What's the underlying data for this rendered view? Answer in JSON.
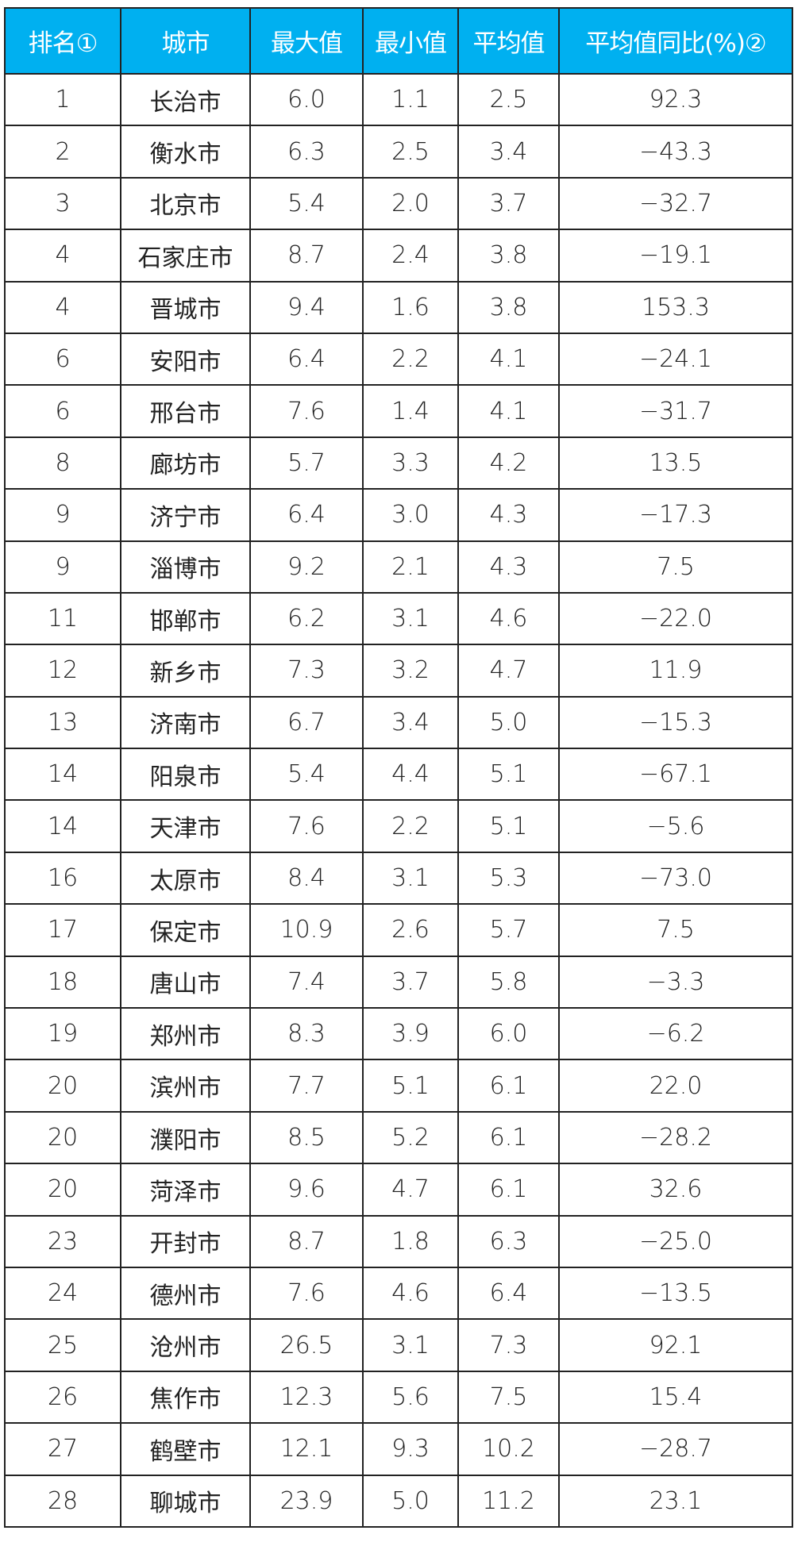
{
  "table": {
    "headers": [
      "排名①",
      "城市",
      "最大值",
      "最小值",
      "平均值",
      "平均值同比(%)②"
    ],
    "header_color": "#00b0f0",
    "rows": [
      [
        "1",
        "长治市",
        "6.0",
        "1.1",
        "2.5",
        "92.3"
      ],
      [
        "2",
        "衡水市",
        "6.3",
        "2.5",
        "3.4",
        "−43.3"
      ],
      [
        "3",
        "北京市",
        "5.4",
        "2.0",
        "3.7",
        "−32.7"
      ],
      [
        "4",
        "石家庄市",
        "8.7",
        "2.4",
        "3.8",
        "−19.1"
      ],
      [
        "4",
        "晋城市",
        "9.4",
        "1.6",
        "3.8",
        "153.3"
      ],
      [
        "6",
        "安阳市",
        "6.4",
        "2.2",
        "4.1",
        "−24.1"
      ],
      [
        "6",
        "邢台市",
        "7.6",
        "1.4",
        "4.1",
        "−31.7"
      ],
      [
        "8",
        "廊坊市",
        "5.7",
        "3.3",
        "4.2",
        "13.5"
      ],
      [
        "9",
        "济宁市",
        "6.4",
        "3.0",
        "4.3",
        "−17.3"
      ],
      [
        "9",
        "淄博市",
        "9.2",
        "2.1",
        "4.3",
        "7.5"
      ],
      [
        "11",
        "邯郸市",
        "6.2",
        "3.1",
        "4.6",
        "−22.0"
      ],
      [
        "12",
        "新乡市",
        "7.3",
        "3.2",
        "4.7",
        "11.9"
      ],
      [
        "13",
        "济南市",
        "6.7",
        "3.4",
        "5.0",
        "−15.3"
      ],
      [
        "14",
        "阳泉市",
        "5.4",
        "4.4",
        "5.1",
        "−67.1"
      ],
      [
        "14",
        "天津市",
        "7.6",
        "2.2",
        "5.1",
        "−5.6"
      ],
      [
        "16",
        "太原市",
        "8.4",
        "3.1",
        "5.3",
        "−73.0"
      ],
      [
        "17",
        "保定市",
        "10.9",
        "2.6",
        "5.7",
        "7.5"
      ],
      [
        "18",
        "唐山市",
        "7.4",
        "3.7",
        "5.8",
        "−3.3"
      ],
      [
        "19",
        "郑州市",
        "8.3",
        "3.9",
        "6.0",
        "−6.2"
      ],
      [
        "20",
        "滨州市",
        "7.7",
        "5.1",
        "6.1",
        "22.0"
      ],
      [
        "20",
        "濮阳市",
        "8.5",
        "5.2",
        "6.1",
        "−28.2"
      ],
      [
        "20",
        "菏泽市",
        "9.6",
        "4.7",
        "6.1",
        "32.6"
      ],
      [
        "23",
        "开封市",
        "8.7",
        "1.8",
        "6.3",
        "−25.0"
      ],
      [
        "24",
        "德州市",
        "7.6",
        "4.6",
        "6.4",
        "−13.5"
      ],
      [
        "25",
        "沧州市",
        "26.5",
        "3.1",
        "7.3",
        "92.1"
      ],
      [
        "26",
        "焦作市",
        "12.3",
        "5.6",
        "7.5",
        "15.4"
      ],
      [
        "27",
        "鹤壁市",
        "12.1",
        "9.3",
        "10.2",
        "−28.7"
      ],
      [
        "28",
        "聊城市",
        "23.9",
        "5.0",
        "11.2",
        "23.1"
      ]
    ]
  }
}
